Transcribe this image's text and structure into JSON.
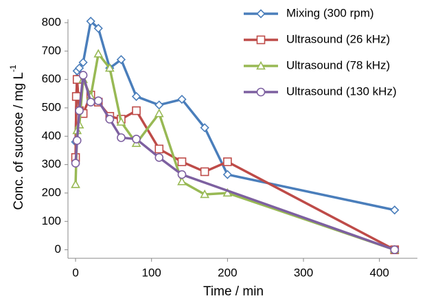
{
  "chart_data": {
    "type": "line",
    "x_label": "Time / min",
    "y_label": "Conc. of sucrose / mg L",
    "y_label_sup": "-1",
    "xlim": [
      -10,
      450
    ],
    "xticks": [
      0,
      100,
      200,
      300,
      400
    ],
    "ylim": [
      -30,
      800
    ],
    "yticks": [
      0,
      100,
      200,
      300,
      400,
      500,
      600,
      700,
      800
    ],
    "legend": "top-right",
    "series": [
      {
        "name": "Mixing (300 rpm)",
        "color": "#4a7ebb",
        "marker": "diamond",
        "x": [
          0,
          2,
          5,
          10,
          20,
          30,
          45,
          60,
          80,
          110,
          140,
          170,
          200,
          420
        ],
        "values": [
          380,
          630,
          640,
          660,
          805,
          780,
          640,
          670,
          540,
          510,
          530,
          430,
          265,
          140
        ]
      },
      {
        "name": "Ultrasound (26 kHz)",
        "color": "#be4b48",
        "marker": "square",
        "x": [
          0,
          1,
          2,
          5,
          10,
          20,
          30,
          45,
          60,
          80,
          110,
          140,
          170,
          200,
          420
        ],
        "values": [
          325,
          540,
          600,
          490,
          480,
          545,
          520,
          470,
          460,
          490,
          355,
          310,
          275,
          310,
          0
        ]
      },
      {
        "name": "Ultrasound (78 kHz)",
        "color": "#98b954",
        "marker": "triangle",
        "x": [
          0,
          2,
          5,
          10,
          20,
          30,
          45,
          60,
          80,
          110,
          140,
          170,
          200,
          420
        ],
        "values": [
          230,
          420,
          440,
          600,
          540,
          690,
          640,
          450,
          375,
          480,
          240,
          195,
          200,
          0
        ]
      },
      {
        "name": "Ultrasound (130 kHz)",
        "color": "#7d60a0",
        "marker": "circle",
        "x": [
          0,
          2,
          5,
          10,
          20,
          30,
          45,
          60,
          80,
          110,
          140,
          420
        ],
        "values": [
          305,
          385,
          490,
          615,
          520,
          525,
          460,
          395,
          390,
          325,
          265,
          0
        ]
      }
    ]
  }
}
